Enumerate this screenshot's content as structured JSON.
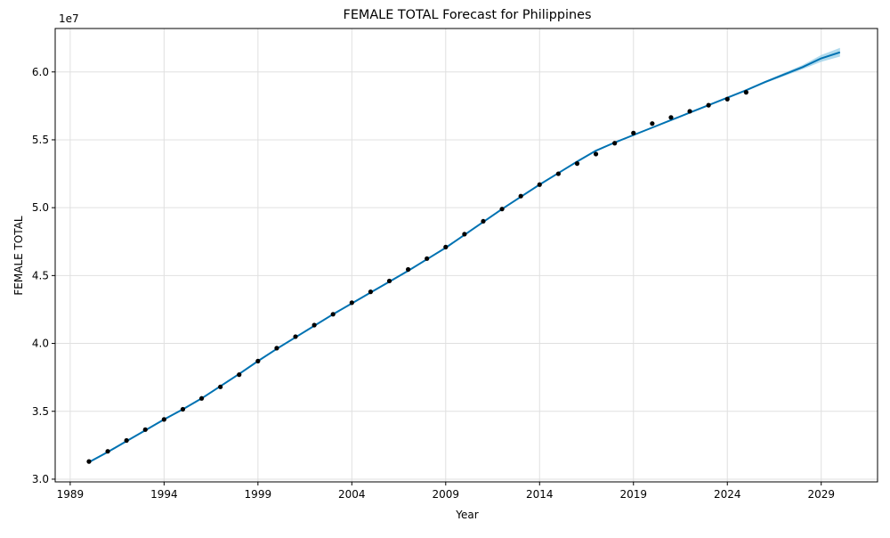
{
  "chart_data": {
    "type": "line",
    "title": "FEMALE TOTAL Forecast for Philippines",
    "xlabel": "Year",
    "ylabel": "FEMALE TOTAL",
    "y_offset_label": "1e7",
    "xlim": [
      1988.2,
      2032.0
    ],
    "ylim": [
      2.98,
      6.32
    ],
    "y_unit_multiplier": 10000000,
    "x_ticks": [
      1989,
      1994,
      1999,
      2004,
      2009,
      2014,
      2019,
      2024,
      2029
    ],
    "x_tick_labels": [
      "1989",
      "1994",
      "1999",
      "2004",
      "2009",
      "2014",
      "2019",
      "2024",
      "2029"
    ],
    "y_ticks": [
      3.0,
      3.5,
      4.0,
      4.5,
      5.0,
      5.5,
      6.0
    ],
    "y_tick_labels": [
      "3.0",
      "3.5",
      "4.0",
      "4.5",
      "5.0",
      "5.5",
      "6.0"
    ],
    "grid": true,
    "colors": {
      "forecast_line": "#0072b2",
      "uncertainty_band": "#8ecae6",
      "observed_points": "#000000",
      "grid": "#e0e0e0",
      "axes": "#000000"
    },
    "series": [
      {
        "kind": "observed-points",
        "x": [
          1990,
          1991,
          1992,
          1993,
          1994,
          1995,
          1996,
          1997,
          1998,
          1999,
          2000,
          2001,
          2002,
          2003,
          2004,
          2005,
          2006,
          2007,
          2008,
          2009,
          2010,
          2011,
          2012,
          2013,
          2014,
          2015,
          2016,
          2017,
          2018,
          2019,
          2020,
          2021,
          2022,
          2023,
          2024,
          2025
        ],
        "y": [
          3.13,
          3.205,
          3.285,
          3.365,
          3.44,
          3.515,
          3.595,
          3.68,
          3.77,
          3.87,
          3.965,
          4.05,
          4.135,
          4.215,
          4.3,
          4.38,
          4.46,
          4.545,
          4.625,
          4.71,
          4.805,
          4.9,
          4.99,
          5.085,
          5.17,
          5.25,
          5.325,
          5.395,
          5.475,
          5.55,
          5.62,
          5.665,
          5.71,
          5.755,
          5.8,
          5.85
        ]
      },
      {
        "kind": "forecast-line",
        "x": [
          1990,
          1991,
          1992,
          1993,
          1994,
          1995,
          1996,
          1997,
          1998,
          1999,
          2000,
          2001,
          2002,
          2003,
          2004,
          2005,
          2006,
          2007,
          2008,
          2009,
          2010,
          2011,
          2012,
          2013,
          2014,
          2015,
          2016,
          2017,
          2018,
          2019,
          2020,
          2021,
          2022,
          2023,
          2024,
          2025,
          2026,
          2027,
          2028,
          2029,
          2030
        ],
        "y": [
          3.125,
          3.2,
          3.28,
          3.36,
          3.44,
          3.515,
          3.595,
          3.685,
          3.775,
          3.87,
          3.96,
          4.045,
          4.13,
          4.215,
          4.295,
          4.375,
          4.455,
          4.535,
          4.62,
          4.705,
          4.8,
          4.895,
          4.99,
          5.08,
          5.17,
          5.255,
          5.34,
          5.42,
          5.48,
          5.535,
          5.59,
          5.645,
          5.7,
          5.755,
          5.81,
          5.865,
          5.925,
          5.98,
          6.035,
          6.1,
          6.145
        ],
        "band_halfwidth": [
          0.006,
          0.006,
          0.006,
          0.006,
          0.006,
          0.006,
          0.006,
          0.006,
          0.006,
          0.006,
          0.006,
          0.006,
          0.006,
          0.006,
          0.006,
          0.006,
          0.006,
          0.006,
          0.006,
          0.006,
          0.006,
          0.006,
          0.006,
          0.006,
          0.006,
          0.006,
          0.006,
          0.006,
          0.006,
          0.006,
          0.006,
          0.006,
          0.006,
          0.006,
          0.006,
          0.006,
          0.008,
          0.012,
          0.015,
          0.025,
          0.032
        ]
      }
    ]
  }
}
